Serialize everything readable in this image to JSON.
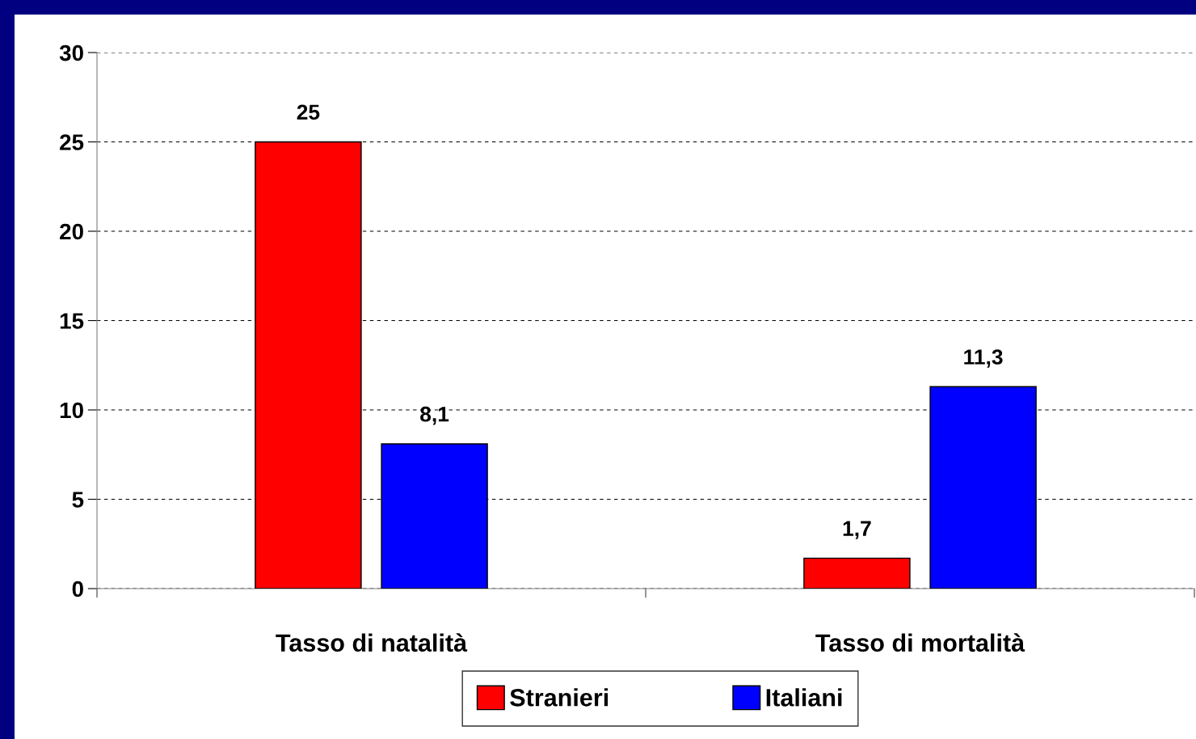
{
  "chart_data": {
    "type": "bar",
    "categories": [
      "Tasso di natalità",
      "Tasso di mortalità"
    ],
    "series": [
      {
        "name": "Stranieri",
        "color": "#ff0000",
        "values": [
          25,
          1.7
        ],
        "value_labels": [
          "25",
          "1,7"
        ]
      },
      {
        "name": "Italiani",
        "color": "#0000ff",
        "values": [
          8.1,
          11.3
        ],
        "value_labels": [
          "8,1",
          "11,3"
        ]
      }
    ],
    "ylim": [
      0,
      30
    ],
    "yticks": [
      0,
      5,
      10,
      15,
      20,
      25,
      30
    ],
    "grid": "y",
    "legend": "bottom"
  }
}
